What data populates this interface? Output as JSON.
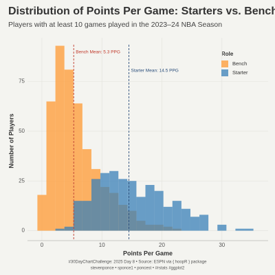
{
  "chart_data": {
    "type": "histogram",
    "title": "Distribution of Points Per Game: Starters vs. Bench Players",
    "subtitle": "Players with at least 10 games played in the 2023–24 NBA Season",
    "x_label": "Points Per Game",
    "y_label": "Number of Players",
    "bins": [
      -0.75,
      0.75,
      2.25,
      3.75,
      5.25,
      6.75,
      8.25,
      9.75,
      11.25,
      12.75,
      14.25,
      15.75,
      17.25,
      18.75,
      20.25,
      21.75,
      23.25,
      24.75,
      26.25,
      27.75,
      29.25,
      30.75,
      32.25,
      33.75,
      35.25
    ],
    "series": [
      {
        "name": "Bench",
        "color": "#ff9933",
        "values": [
          18,
          65,
          93,
          81,
          64,
          41,
          31,
          22,
          19,
          13,
          10,
          5,
          3,
          3,
          2,
          1,
          0,
          0,
          0,
          0,
          0,
          0,
          0,
          0
        ]
      },
      {
        "name": "Starter",
        "color": "#3a80b8",
        "values": [
          0,
          0,
          1,
          2,
          15,
          15,
          26,
          29,
          30,
          26,
          25,
          17,
          23,
          20,
          12,
          15,
          11,
          7,
          8,
          0,
          3,
          0,
          1,
          1
        ]
      }
    ],
    "means": [
      {
        "value": 5.3,
        "label": "Bench Mean: 5.3 PPG",
        "color": "#c0392b"
      },
      {
        "value": 14.5,
        "label": "Starter Mean: 14.5 PPG",
        "color": "#2c4f7c"
      }
    ],
    "legend_title": "Role",
    "xlim": [
      -2.4,
      37.7
    ],
    "ylim": [
      -5,
      97
    ],
    "xticks": [
      0,
      10,
      20,
      30
    ],
    "yticks": [
      0,
      25,
      50,
      75
    ],
    "grid": true,
    "caption": [
      "#30DayChartChallenge: 2025 Day 8 • Source: ESPN via { hoopR } package",
      "stevenponce • sponce1 • poncest • #rstats #ggplot2"
    ]
  }
}
